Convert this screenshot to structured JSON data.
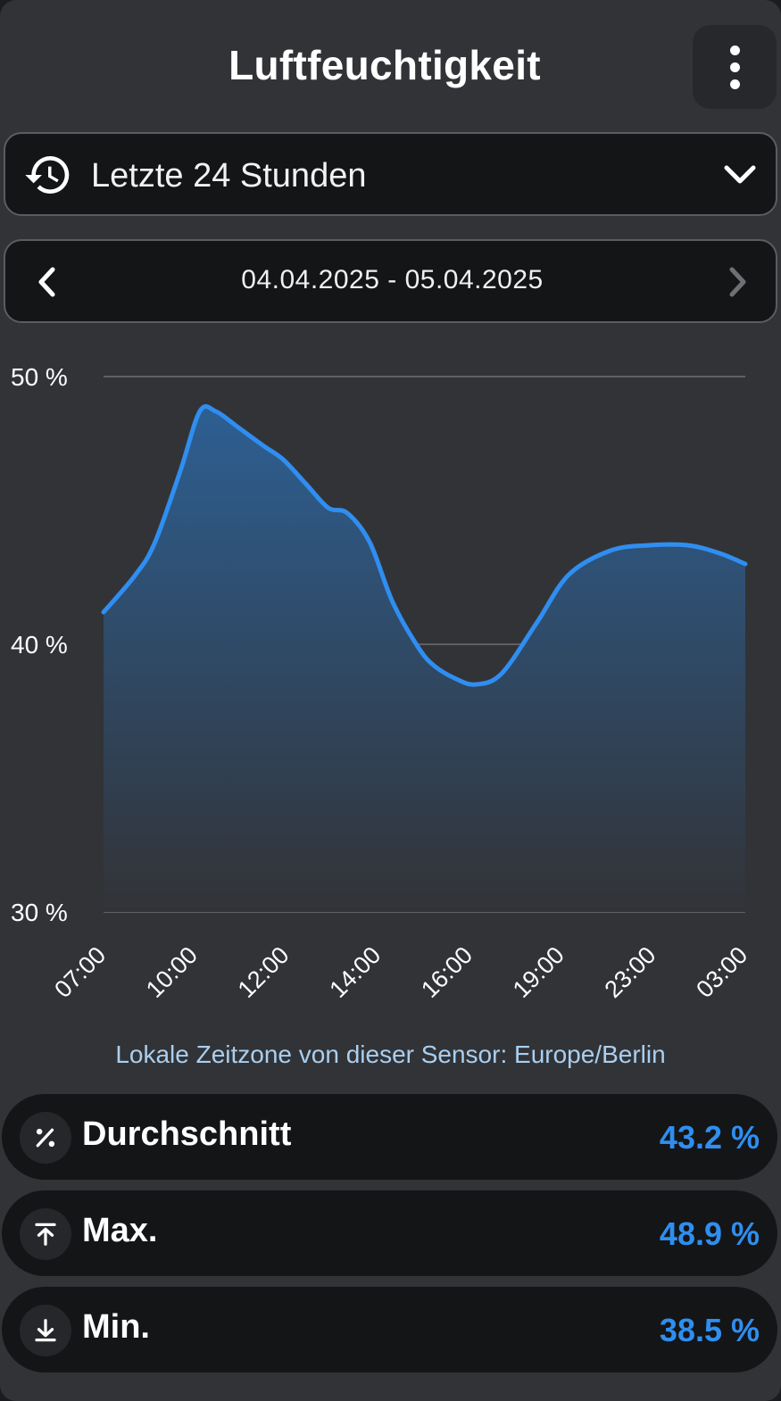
{
  "header": {
    "title": "Luftfeuchtigkeit",
    "menu_icon": "more-vertical-icon"
  },
  "range_select": {
    "selected": "Letzte 24 Stunden",
    "icon": "history-icon",
    "dropdown_icon": "chevron-down-icon"
  },
  "date_nav": {
    "range": "04.04.2025 - 05.04.2025",
    "prev_icon": "chevron-left-icon",
    "next_icon": "chevron-right-icon"
  },
  "colors": {
    "accent": "#2f8ef0",
    "line": "#2f8ef0",
    "fill_top": "#2d5f92",
    "fill_bottom": "#323337"
  },
  "chart_data": {
    "type": "area",
    "title": "",
    "xlabel": "",
    "ylabel": "",
    "ylim": [
      30,
      50
    ],
    "y_ticks": [
      "30 %",
      "40 %",
      "50 %"
    ],
    "y_tick_values": [
      30,
      40,
      50
    ],
    "x_tick_labels": [
      "07:00",
      "10:00",
      "12:00",
      "14:00",
      "16:00",
      "19:00",
      "23:00",
      "03:00"
    ],
    "x_tick_values": [
      7,
      10,
      12,
      14,
      16,
      19,
      23,
      27
    ],
    "x_range": [
      7,
      27
    ],
    "grid": true,
    "series": [
      {
        "x": [
          7,
          8,
          8.6,
          9.4,
          10,
          10.5,
          11.2,
          12,
          12.6,
          13.3,
          14,
          14.6,
          15.3,
          16,
          16.8,
          17.3,
          18,
          18.6,
          19.4,
          20.5,
          21.5,
          22.8,
          24,
          25.2,
          26.2,
          27
        ],
        "y": [
          41.2,
          42.6,
          43.8,
          46.5,
          48.7,
          48.7,
          48.1,
          47.4,
          46.9,
          46.0,
          45.1,
          44.9,
          43.8,
          41.6,
          39.9,
          39.2,
          38.7,
          38.5,
          38.9,
          40.8,
          42.6,
          43.5,
          43.7,
          43.7,
          43.4,
          43.0
        ]
      }
    ]
  },
  "timezone_note": "Lokale Zeitzone von dieser Sensor: Europe/Berlin",
  "stats": [
    {
      "label": "Durchschnitt",
      "value": "43.2 %",
      "icon": "percent-icon"
    },
    {
      "label": "Max.",
      "value": "48.9 %",
      "icon": "arrow-up-to-line-icon"
    },
    {
      "label": "Min.",
      "value": "38.5 %",
      "icon": "arrow-down-to-line-icon"
    }
  ]
}
